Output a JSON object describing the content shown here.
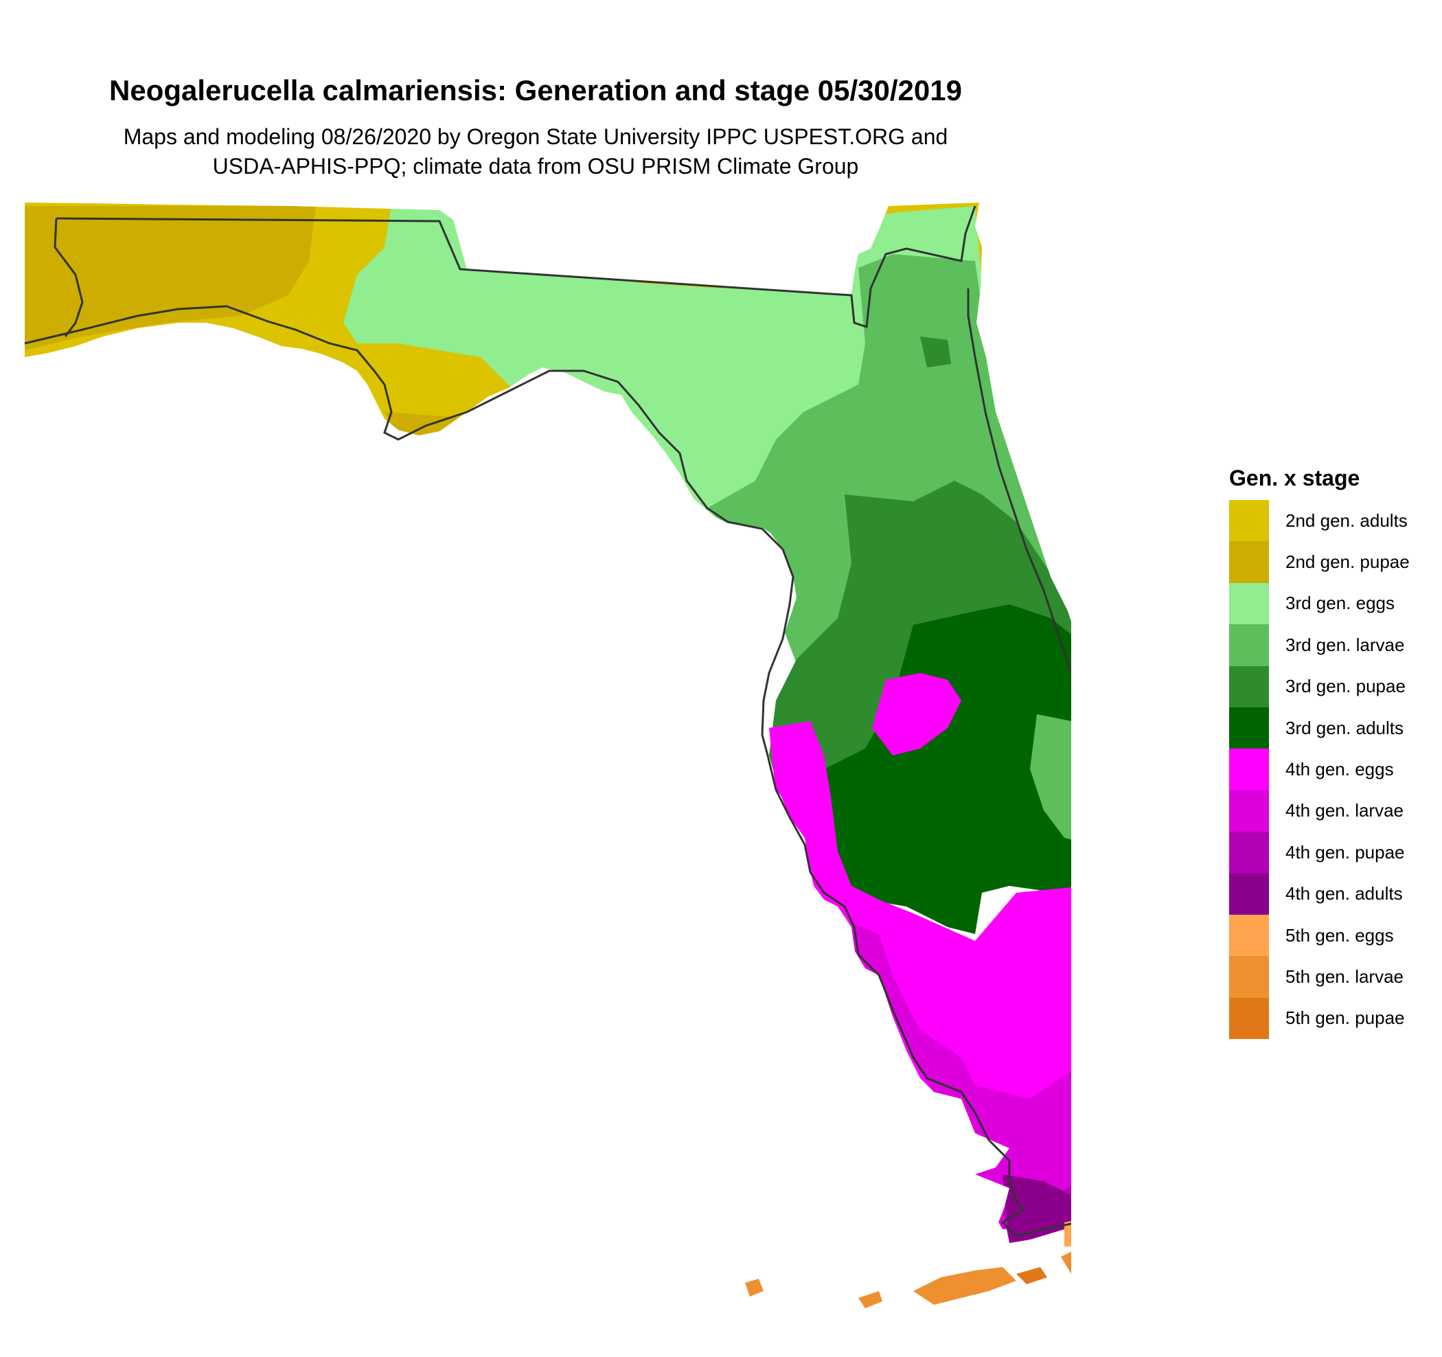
{
  "map": {
    "title": "Neogalerucella calmariensis: Generation and stage 05/30/2019",
    "subtitle_line1": "Maps and modeling 08/26/2020 by Oregon State University IPPC USPEST.ORG and",
    "subtitle_line2": "USDA-APHIS-PPQ; climate data from OSU PRISM Climate Group",
    "region": "Florida",
    "colors": {
      "background": "#ffffff",
      "outline": "#333333"
    }
  },
  "legend": {
    "title": "Gen. x stage",
    "items": [
      {
        "label": "2nd gen. adults",
        "color": "#dcc300"
      },
      {
        "label": "2nd gen. pupae",
        "color": "#cdae00"
      },
      {
        "label": "3rd gen. eggs",
        "color": "#90ee90"
      },
      {
        "label": "3rd gen. larvae",
        "color": "#5cbf5c"
      },
      {
        "label": "3rd gen. pupae",
        "color": "#2e8b2e"
      },
      {
        "label": "3rd gen. adults",
        "color": "#006400"
      },
      {
        "label": "4th gen. eggs",
        "color": "#ff00ff"
      },
      {
        "label": "4th gen. larvae",
        "color": "#dd00dd"
      },
      {
        "label": "4th gen. pupae",
        "color": "#b400b4"
      },
      {
        "label": "4th gen. adults",
        "color": "#8b008b"
      },
      {
        "label": "5th gen. eggs",
        "color": "#ffa54f"
      },
      {
        "label": "5th gen. larvae",
        "color": "#ee9030"
      },
      {
        "label": "5th gen. pupae",
        "color": "#e07818"
      }
    ]
  }
}
